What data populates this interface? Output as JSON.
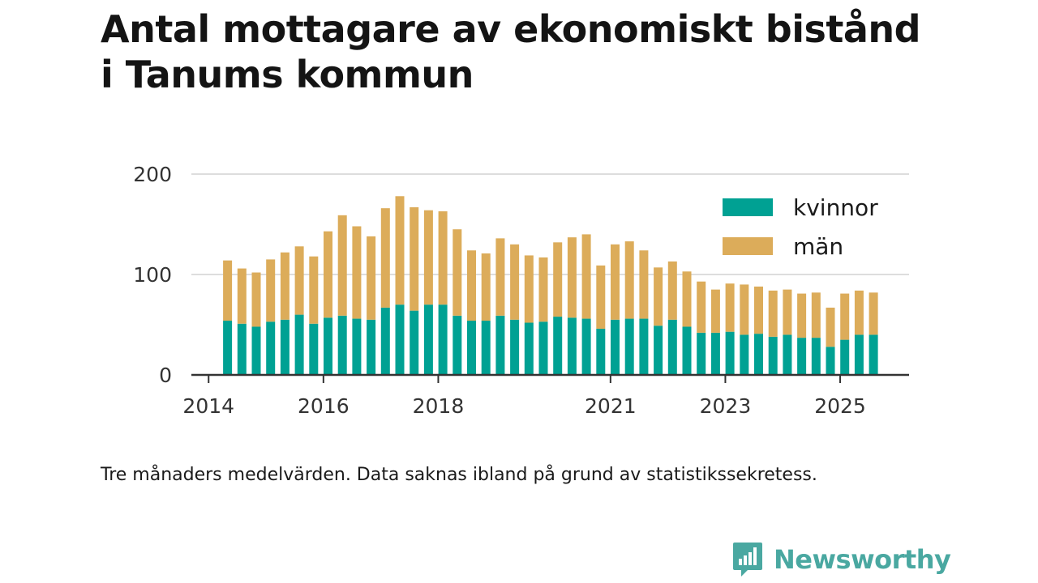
{
  "title": {
    "line1": "Antal mottagare av ekonomiskt bistånd",
    "line2": "i Tanums kommun"
  },
  "note": "Tre månaders medelvärden. Data saknas ibland på grund av statistikssekretess.",
  "brand": {
    "name": "Newsworthy",
    "icon": "newsworthy-logo-icon"
  },
  "colors": {
    "kvinnor": "#00a193",
    "man": "#dcac5a",
    "grid": "#dddddd",
    "axis": "#333333",
    "brand": "#4aa8a1"
  },
  "chart_data": {
    "type": "bar",
    "stacked": true,
    "title": "Antal mottagare av ekonomiskt bistånd i Tanums kommun",
    "xlabel": "",
    "ylabel": "",
    "ylim": [
      0,
      200
    ],
    "yticks": [
      0,
      100,
      200
    ],
    "grid": true,
    "legend": "top-right",
    "xlim": [
      2013.7,
      2026.2
    ],
    "xticks": [
      {
        "label": "2014",
        "pos": 2014.0
      },
      {
        "label": "2016",
        "pos": 2016.0
      },
      {
        "label": "2018",
        "pos": 2018.0
      },
      {
        "label": "2021",
        "pos": 2021.0
      },
      {
        "label": "2023",
        "pos": 2023.0
      },
      {
        "label": "2025",
        "pos": 2025.0
      }
    ],
    "x": [
      2014.33,
      2014.58,
      2014.83,
      2015.08,
      2015.33,
      2015.58,
      2015.83,
      2016.08,
      2016.33,
      2016.58,
      2016.83,
      2017.08,
      2017.33,
      2017.58,
      2017.83,
      2018.08,
      2018.33,
      2018.58,
      2018.83,
      2019.08,
      2019.33,
      2019.58,
      2019.83,
      2020.08,
      2020.33,
      2020.58,
      2020.83,
      2021.08,
      2021.33,
      2021.58,
      2021.83,
      2022.08,
      2022.33,
      2022.58,
      2022.83,
      2023.08,
      2023.33,
      2023.58,
      2023.83,
      2024.08,
      2024.33,
      2024.58,
      2024.83,
      2025.08,
      2025.33,
      2025.58
    ],
    "series": [
      {
        "name": "kvinnor",
        "color": "#00a193",
        "values": [
          54,
          51,
          48,
          53,
          55,
          60,
          51,
          57,
          59,
          56,
          55,
          67,
          70,
          64,
          70,
          70,
          59,
          54,
          54,
          59,
          55,
          52,
          53,
          58,
          57,
          56,
          46,
          55,
          56,
          56,
          49,
          55,
          48,
          42,
          42,
          43,
          40,
          41,
          38,
          40,
          37,
          37,
          28,
          35,
          40,
          40
        ]
      },
      {
        "name": "män",
        "color": "#dcac5a",
        "values": [
          60,
          55,
          54,
          62,
          67,
          68,
          67,
          86,
          100,
          92,
          83,
          99,
          108,
          103,
          94,
          93,
          86,
          70,
          67,
          77,
          75,
          67,
          64,
          74,
          80,
          84,
          63,
          75,
          77,
          68,
          58,
          58,
          55,
          51,
          43,
          48,
          50,
          47,
          46,
          45,
          44,
          45,
          39,
          46,
          44,
          42
        ]
      }
    ]
  }
}
